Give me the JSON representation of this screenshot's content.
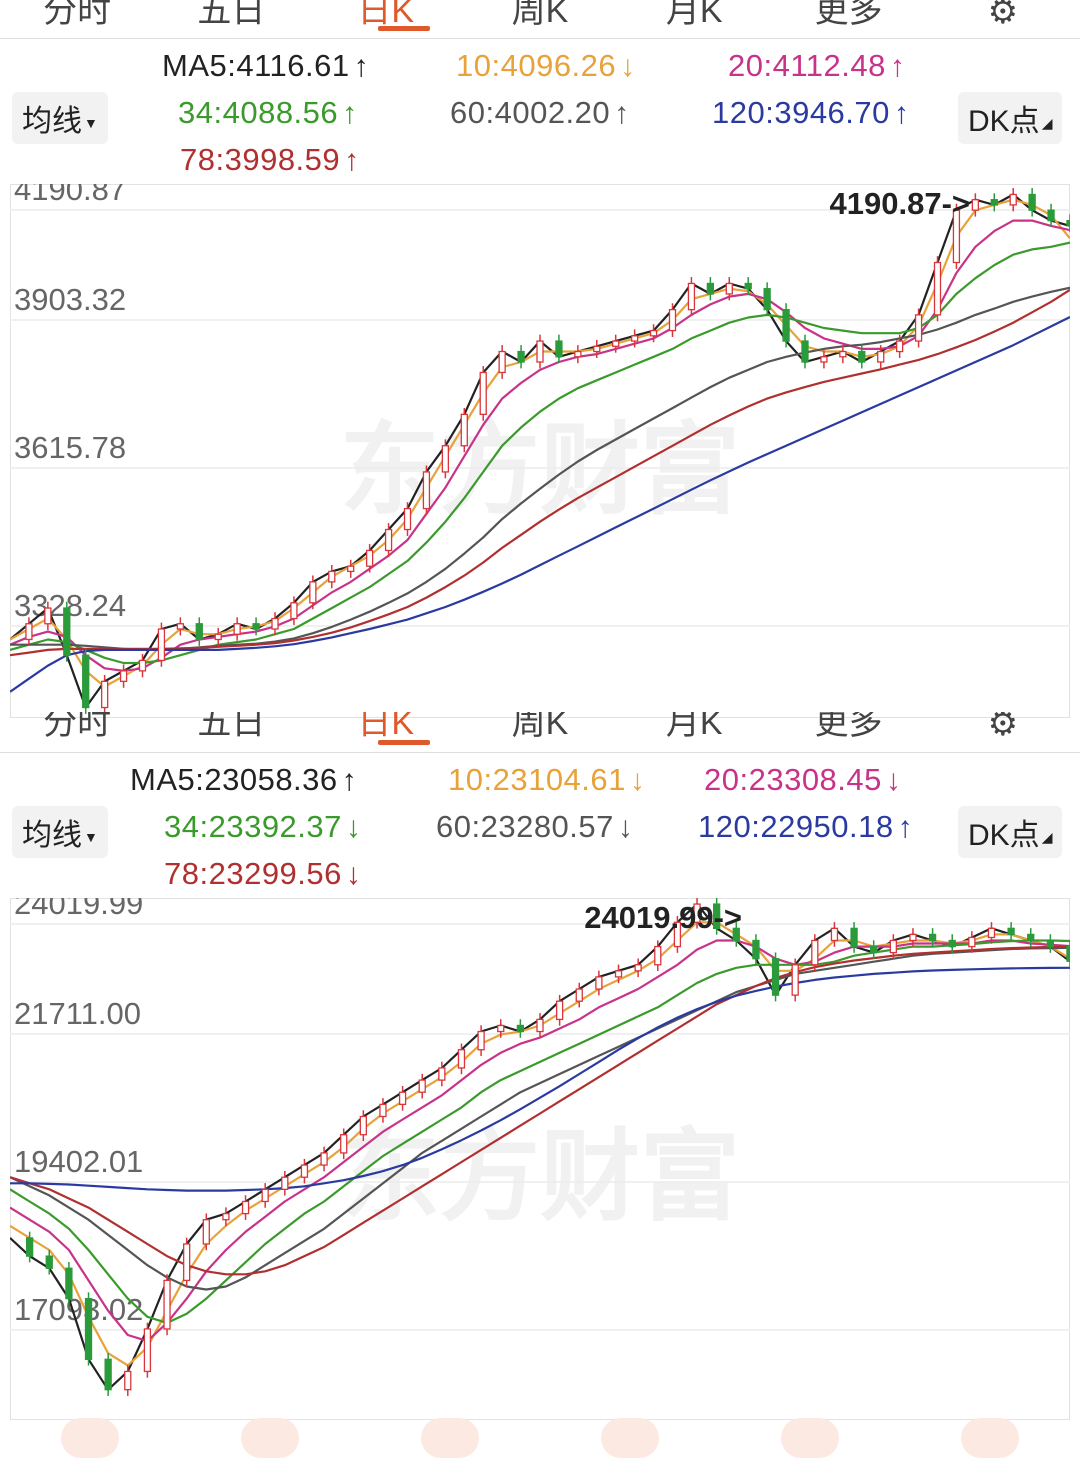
{
  "tabs": [
    "分时",
    "五日",
    "日K",
    "周K",
    "月K",
    "更多"
  ],
  "tabs2": [
    "分时",
    "五日",
    "日K",
    "周K",
    "月K",
    "更多"
  ],
  "watermark": "东方财富",
  "panels": [
    {
      "ma_button": "均线",
      "dk_button": "DK点",
      "ma": [
        {
          "label": "MA5:4116.61",
          "arrow": "↑",
          "color": "#222222"
        },
        {
          "label": "10:4096.26",
          "arrow": "↓",
          "color": "#e8a23a"
        },
        {
          "label": "20:4112.48",
          "arrow": "↑",
          "color": "#c8338a"
        },
        {
          "label": "34:4088.56",
          "arrow": "↑",
          "color": "#3a9a2b"
        },
        {
          "label": "60:4002.20",
          "arrow": "↑",
          "color": "#555555"
        },
        {
          "label": "120:3946.70",
          "arrow": "↑",
          "color": "#2a3aa0"
        },
        {
          "label": "78:3998.59",
          "arrow": "↑",
          "color": "#b03030"
        }
      ],
      "chart_data": {
        "type": "line",
        "y_ticks": [
          "4190.87",
          "3903.32",
          "3615.78",
          "3328.24"
        ],
        "ylim": [
          3180,
          4200
        ],
        "max_marker": "4190.87->",
        "series": [
          {
            "color": "#222222",
            "values": [
              3330,
              3360,
              3390,
              3300,
              3200,
              3250,
              3270,
              3290,
              3350,
              3360,
              3330,
              3340,
              3360,
              3350,
              3370,
              3400,
              3440,
              3460,
              3470,
              3500,
              3540,
              3580,
              3650,
              3700,
              3760,
              3840,
              3880,
              3860,
              3900,
              3870,
              3880,
              3890,
              3900,
              3910,
              3920,
              3960,
              4010,
              3990,
              4010,
              4000,
              3960,
              3900,
              3860,
              3870,
              3880,
              3860,
              3880,
              3900,
              3950,
              4050,
              4150,
              4170,
              4160,
              4180,
              4150,
              4130,
              4120
            ]
          },
          {
            "color": "#e8a23a",
            "values": [
              3330,
              3350,
              3370,
              3330,
              3270,
              3240,
              3260,
              3280,
              3320,
              3350,
              3340,
              3340,
              3350,
              3355,
              3365,
              3390,
              3420,
              3450,
              3470,
              3490,
              3520,
              3560,
              3620,
              3680,
              3740,
              3800,
              3850,
              3860,
              3880,
              3880,
              3880,
              3885,
              3895,
              3905,
              3915,
              3940,
              3980,
              3990,
              4000,
              3995,
              3970,
              3930,
              3890,
              3880,
              3880,
              3870,
              3875,
              3890,
              3930,
              4010,
              4100,
              4150,
              4160,
              4170,
              4160,
              4140,
              4096
            ]
          },
          {
            "color": "#c8338a",
            "values": [
              3320,
              3335,
              3345,
              3335,
              3300,
              3275,
              3270,
              3275,
              3295,
              3320,
              3330,
              3335,
              3340,
              3345,
              3355,
              3370,
              3395,
              3420,
              3440,
              3465,
              3490,
              3520,
              3570,
              3620,
              3680,
              3740,
              3790,
              3820,
              3845,
              3860,
              3870,
              3875,
              3885,
              3895,
              3905,
              3925,
              3950,
              3970,
              3985,
              3990,
              3980,
              3955,
              3925,
              3905,
              3895,
              3885,
              3885,
              3890,
              3910,
              3960,
              4030,
              4080,
              4110,
              4130,
              4130,
              4120,
              4112
            ]
          },
          {
            "color": "#3a9a2b",
            "values": [
              3310,
              3320,
              3330,
              3325,
              3310,
              3295,
              3285,
              3285,
              3290,
              3300,
              3310,
              3320,
              3325,
              3330,
              3340,
              3350,
              3370,
              3390,
              3410,
              3430,
              3455,
              3480,
              3515,
              3555,
              3600,
              3650,
              3700,
              3735,
              3765,
              3790,
              3810,
              3825,
              3840,
              3855,
              3870,
              3885,
              3905,
              3920,
              3935,
              3945,
              3950,
              3945,
              3935,
              3925,
              3920,
              3915,
              3915,
              3915,
              3925,
              3950,
              3990,
              4020,
              4045,
              4065,
              4075,
              4080,
              4088
            ]
          },
          {
            "color": "#555555",
            "values": [
              3320,
              3320,
              3320,
              3320,
              3318,
              3315,
              3312,
              3310,
              3310,
              3312,
              3315,
              3318,
              3320,
              3322,
              3326,
              3332,
              3342,
              3354,
              3368,
              3383,
              3400,
              3418,
              3440,
              3465,
              3494,
              3525,
              3560,
              3590,
              3618,
              3645,
              3670,
              3692,
              3712,
              3732,
              3752,
              3772,
              3792,
              3812,
              3830,
              3845,
              3860,
              3870,
              3878,
              3885,
              3890,
              3893,
              3898,
              3905,
              3912,
              3922,
              3935,
              3950,
              3962,
              3975,
              3985,
              3994,
              4002
            ]
          },
          {
            "color": "#b03030",
            "values": [
              3300,
              3305,
              3310,
              3312,
              3312,
              3312,
              3312,
              3312,
              3312,
              3313,
              3314,
              3316,
              3318,
              3320,
              3323,
              3328,
              3335,
              3343,
              3353,
              3365,
              3378,
              3392,
              3410,
              3430,
              3452,
              3477,
              3505,
              3530,
              3555,
              3578,
              3600,
              3620,
              3640,
              3660,
              3680,
              3700,
              3720,
              3740,
              3758,
              3775,
              3790,
              3802,
              3812,
              3822,
              3830,
              3838,
              3846,
              3855,
              3864,
              3875,
              3888,
              3902,
              3918,
              3935,
              3955,
              3975,
              3998
            ]
          },
          {
            "color": "#2a3aa0",
            "values": [
              3230,
              3255,
              3280,
              3300,
              3308,
              3310,
              3310,
              3310,
              3310,
              3310,
              3310,
              3310,
              3312,
              3314,
              3317,
              3321,
              3327,
              3334,
              3342,
              3350,
              3359,
              3368,
              3380,
              3392,
              3406,
              3421,
              3437,
              3454,
              3472,
              3490,
              3508,
              3526,
              3544,
              3562,
              3580,
              3598,
              3616,
              3634,
              3651,
              3668,
              3684,
              3700,
              3716,
              3732,
              3748,
              3764,
              3780,
              3796,
              3812,
              3828,
              3844,
              3860,
              3876,
              3892,
              3910,
              3928,
              3946
            ]
          }
        ]
      }
    },
    {
      "ma_button": "均线",
      "dk_button": "DK点",
      "ma": [
        {
          "label": "MA5:23058.36",
          "arrow": "↑",
          "color": "#222222"
        },
        {
          "label": "10:23104.61",
          "arrow": "↓",
          "color": "#e8a23a"
        },
        {
          "label": "20:23308.45",
          "arrow": "↓",
          "color": "#c8338a"
        },
        {
          "label": "34:23392.37",
          "arrow": "↓",
          "color": "#3a9a2b"
        },
        {
          "label": "60:23280.57",
          "arrow": "↓",
          "color": "#555555"
        },
        {
          "label": "120:22950.18",
          "arrow": "↑",
          "color": "#2a3aa0"
        },
        {
          "label": "78:23299.56",
          "arrow": "↓",
          "color": "#b03030"
        }
      ],
      "chart_data": {
        "type": "line",
        "y_ticks": [
          "24019.99",
          "21711.00",
          "19402.01",
          "17093.02"
        ],
        "ylim": [
          15500,
          24100
        ],
        "max_marker": "24019.99->",
        "series": [
          {
            "color": "#222222",
            "values": [
              18500,
              18200,
              18000,
              17500,
              16500,
              16000,
              16300,
              17000,
              17800,
              18400,
              18800,
              18900,
              19100,
              19300,
              19500,
              19700,
              19900,
              20200,
              20500,
              20700,
              20900,
              21100,
              21300,
              21600,
              21900,
              22000,
              21900,
              22100,
              22400,
              22600,
              22800,
              22900,
              23000,
              23300,
              23700,
              24000,
              23600,
              23400,
              23100,
              22500,
              23000,
              23400,
              23600,
              23300,
              23200,
              23400,
              23500,
              23400,
              23300,
              23450,
              23600,
              23500,
              23400,
              23300,
              23058
            ]
          },
          {
            "color": "#e8a23a",
            "values": [
              18700,
              18500,
              18300,
              17900,
              17200,
              16600,
              16400,
              16700,
              17300,
              17900,
              18400,
              18700,
              18950,
              19150,
              19350,
              19550,
              19750,
              20000,
              20300,
              20550,
              20750,
              20950,
              21150,
              21400,
              21700,
              21850,
              21900,
              22000,
              22200,
              22400,
              22600,
              22750,
              22900,
              23100,
              23400,
              23700,
              23700,
              23500,
              23300,
              22900,
              22900,
              23100,
              23400,
              23400,
              23300,
              23350,
              23400,
              23400,
              23350,
              23400,
              23500,
              23500,
              23400,
              23300,
              23104
            ]
          },
          {
            "color": "#c8338a",
            "values": [
              19000,
              18800,
              18600,
              18300,
              17800,
              17300,
              16900,
              16800,
              17100,
              17500,
              17950,
              18300,
              18600,
              18850,
              19100,
              19300,
              19500,
              19750,
              20000,
              20250,
              20450,
              20650,
              20850,
              21100,
              21350,
              21550,
              21700,
              21800,
              21950,
              22100,
              22300,
              22450,
              22600,
              22800,
              23000,
              23250,
              23400,
              23400,
              23300,
              23100,
              23000,
              23050,
              23200,
              23300,
              23300,
              23300,
              23350,
              23350,
              23350,
              23350,
              23400,
              23400,
              23350,
              23330,
              23308
            ]
          },
          {
            "color": "#3a9a2b",
            "values": [
              19300,
              19100,
              18900,
              18650,
              18300,
              17900,
              17500,
              17200,
              17100,
              17250,
              17500,
              17800,
              18100,
              18400,
              18650,
              18900,
              19100,
              19350,
              19600,
              19850,
              20050,
              20250,
              20450,
              20650,
              20900,
              21100,
              21250,
              21400,
              21550,
              21700,
              21850,
              22000,
              22150,
              22300,
              22500,
              22700,
              22850,
              22950,
              23000,
              23000,
              23000,
              23000,
              23050,
              23150,
              23200,
              23250,
              23300,
              23300,
              23320,
              23340,
              23370,
              23390,
              23400,
              23400,
              23392
            ]
          },
          {
            "color": "#555555",
            "values": [
              19500,
              19350,
              19200,
              19000,
              18800,
              18550,
              18300,
              18050,
              17850,
              17700,
              17650,
              17700,
              17850,
              18050,
              18250,
              18450,
              18650,
              18900,
              19150,
              19400,
              19650,
              19900,
              20100,
              20300,
              20500,
              20700,
              20900,
              21050,
              21200,
              21350,
              21500,
              21650,
              21800,
              21950,
              22100,
              22250,
              22400,
              22550,
              22650,
              22750,
              22850,
              22900,
              22950,
              23000,
              23050,
              23100,
              23150,
              23180,
              23200,
              23220,
              23240,
              23260,
              23270,
              23275,
              23280
            ]
          },
          {
            "color": "#b03030",
            "values": [
              19500,
              19400,
              19300,
              19150,
              19000,
              18800,
              18600,
              18400,
              18200,
              18050,
              17950,
              17900,
              17900,
              17950,
              18050,
              18200,
              18350,
              18550,
              18750,
              18950,
              19150,
              19350,
              19550,
              19750,
              19950,
              20150,
              20350,
              20550,
              20750,
              20950,
              21150,
              21350,
              21550,
              21750,
              21950,
              22150,
              22350,
              22500,
              22650,
              22780,
              22880,
              22960,
              23020,
              23070,
              23110,
              23150,
              23180,
              23200,
              23220,
              23240,
              23260,
              23275,
              23285,
              23292,
              23299
            ]
          },
          {
            "color": "#2a3aa0",
            "values": [
              19400,
              19400,
              19390,
              19380,
              19360,
              19340,
              19320,
              19300,
              19290,
              19280,
              19280,
              19280,
              19290,
              19300,
              19320,
              19350,
              19400,
              19450,
              19520,
              19600,
              19700,
              19820,
              19960,
              20110,
              20270,
              20440,
              20620,
              20810,
              21000,
              21200,
              21400,
              21600,
              21790,
              21970,
              22130,
              22270,
              22390,
              22490,
              22570,
              22640,
              22700,
              22750,
              22790,
              22820,
              22850,
              22870,
              22890,
              22905,
              22915,
              22925,
              22933,
              22940,
              22945,
              22948,
              22950
            ]
          }
        ]
      }
    }
  ]
}
